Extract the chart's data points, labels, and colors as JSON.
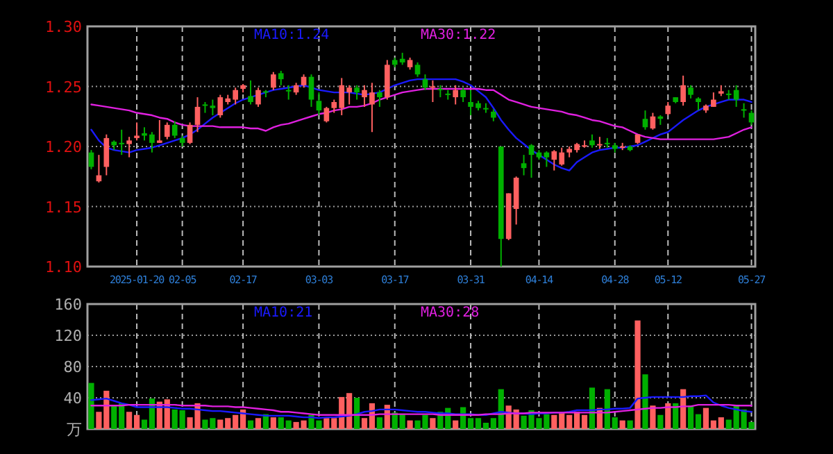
{
  "chart_data": [
    {
      "type": "candlestick",
      "grid": true,
      "legend": "top",
      "categories": [
        null,
        null,
        null,
        null,
        null,
        null,
        "2025-01-20",
        null,
        null,
        null,
        null,
        null,
        "02-05",
        null,
        null,
        null,
        null,
        null,
        null,
        null,
        "02-17",
        null,
        null,
        null,
        null,
        null,
        null,
        null,
        null,
        null,
        "03-03",
        null,
        null,
        null,
        null,
        null,
        null,
        null,
        null,
        null,
        "03-17",
        null,
        null,
        null,
        null,
        null,
        null,
        null,
        null,
        null,
        "03-31",
        null,
        null,
        null,
        null,
        null,
        null,
        null,
        null,
        "04-14",
        null,
        null,
        null,
        null,
        null,
        null,
        null,
        null,
        null,
        "04-28",
        null,
        null,
        null,
        null,
        null,
        null,
        "05-12",
        null,
        null,
        null,
        null,
        null,
        null,
        null,
        null,
        null,
        null,
        "05-27"
      ],
      "ohlc": [
        [
          1.195,
          1.197,
          1.181,
          1.183
        ],
        [
          1.171,
          1.193,
          1.17,
          1.176
        ],
        [
          1.183,
          1.21,
          1.176,
          1.207
        ],
        [
          1.204,
          1.205,
          1.197,
          1.201
        ],
        [
          1.203,
          1.214,
          1.193,
          1.202
        ],
        [
          1.202,
          1.208,
          1.191,
          1.205
        ],
        [
          1.207,
          1.22,
          1.205,
          1.209
        ],
        [
          1.211,
          1.216,
          1.205,
          1.209
        ],
        [
          1.21,
          1.212,
          1.195,
          1.203
        ],
        [
          1.203,
          1.222,
          1.203,
          1.205
        ],
        [
          1.208,
          1.22,
          1.206,
          1.218
        ],
        [
          1.218,
          1.221,
          1.207,
          1.209
        ],
        [
          1.207,
          1.209,
          1.2,
          1.203
        ],
        [
          1.203,
          1.22,
          1.202,
          1.218
        ],
        [
          1.218,
          1.241,
          1.212,
          1.233
        ],
        [
          1.235,
          1.237,
          1.228,
          1.234
        ],
        [
          1.234,
          1.239,
          1.226,
          1.232
        ],
        [
          1.226,
          1.243,
          1.224,
          1.241
        ],
        [
          1.237,
          1.243,
          1.235,
          1.24
        ],
        [
          1.239,
          1.249,
          1.235,
          1.247
        ],
        [
          1.248,
          1.252,
          1.245,
          1.251
        ],
        [
          1.242,
          1.255,
          1.235,
          1.237
        ],
        [
          1.235,
          1.249,
          1.233,
          1.247
        ],
        [
          1.246,
          1.247,
          1.241,
          1.245
        ],
        [
          1.249,
          1.262,
          1.247,
          1.26
        ],
        [
          1.261,
          1.263,
          1.251,
          1.256
        ],
        [
          1.247,
          1.251,
          1.239,
          1.246
        ],
        [
          1.245,
          1.253,
          1.243,
          1.251
        ],
        [
          1.251,
          1.26,
          1.249,
          1.258
        ],
        [
          1.258,
          1.26,
          1.233,
          1.239
        ],
        [
          1.238,
          1.245,
          1.226,
          1.23
        ],
        [
          1.221,
          1.233,
          1.22,
          1.232
        ],
        [
          1.232,
          1.239,
          1.228,
          1.237
        ],
        [
          1.232,
          1.257,
          1.226,
          1.251
        ],
        [
          1.245,
          1.251,
          1.235,
          1.249
        ],
        [
          1.249,
          1.251,
          1.239,
          1.245
        ],
        [
          1.241,
          1.251,
          1.233,
          1.247
        ],
        [
          1.235,
          1.253,
          1.212,
          1.245
        ],
        [
          1.245,
          1.247,
          1.233,
          1.241
        ],
        [
          1.241,
          1.272,
          1.239,
          1.268
        ],
        [
          1.272,
          1.274,
          1.266,
          1.268
        ],
        [
          1.273,
          1.278,
          1.268,
          1.27
        ],
        [
          1.266,
          1.274,
          1.264,
          1.272
        ],
        [
          1.268,
          1.27,
          1.258,
          1.26
        ],
        [
          1.256,
          1.26,
          1.247,
          1.249
        ],
        [
          1.249,
          1.255,
          1.237,
          1.25
        ],
        [
          1.248,
          1.251,
          1.241,
          1.247
        ],
        [
          1.244,
          1.247,
          1.239,
          1.243
        ],
        [
          1.241,
          1.251,
          1.235,
          1.247
        ],
        [
          1.247,
          1.249,
          1.237,
          1.241
        ],
        [
          1.237,
          1.247,
          1.226,
          1.233
        ],
        [
          1.236,
          1.238,
          1.23,
          1.232
        ],
        [
          1.232,
          1.236,
          1.228,
          1.231
        ],
        [
          1.229,
          1.231,
          1.221,
          1.224
        ],
        [
          1.2,
          1.2,
          1.1,
          1.123
        ],
        [
          1.123,
          1.161,
          1.122,
          1.161
        ],
        [
          1.148,
          1.175,
          1.135,
          1.174
        ],
        [
          1.186,
          1.193,
          1.176,
          1.182
        ],
        [
          1.201,
          1.202,
          1.174,
          1.193
        ],
        [
          1.195,
          1.197,
          1.189,
          1.191
        ],
        [
          1.195,
          1.196,
          1.183,
          1.191
        ],
        [
          1.189,
          1.197,
          1.18,
          1.196
        ],
        [
          1.185,
          1.199,
          1.184,
          1.195
        ],
        [
          1.195,
          1.2,
          1.191,
          1.198
        ],
        [
          1.197,
          1.203,
          1.195,
          1.202
        ],
        [
          1.2,
          1.205,
          1.199,
          1.201
        ],
        [
          1.205,
          1.21,
          1.199,
          1.201
        ],
        [
          1.201,
          1.208,
          1.198,
          1.202
        ],
        [
          1.203,
          1.207,
          1.199,
          1.202
        ],
        [
          1.201,
          1.203,
          1.195,
          1.198
        ],
        [
          1.199,
          1.203,
          1.197,
          1.2
        ],
        [
          1.2,
          1.201,
          1.196,
          1.197
        ],
        [
          1.203,
          1.21,
          1.202,
          1.21
        ],
        [
          1.223,
          1.23,
          1.214,
          1.216
        ],
        [
          1.215,
          1.228,
          1.214,
          1.225
        ],
        [
          1.225,
          1.226,
          1.218,
          1.223
        ],
        [
          1.227,
          1.237,
          1.226,
          1.234
        ],
        [
          1.241,
          1.241,
          1.236,
          1.237
        ],
        [
          1.237,
          1.259,
          1.234,
          1.251
        ],
        [
          1.249,
          1.251,
          1.24,
          1.243
        ],
        [
          1.24,
          1.241,
          1.23,
          1.237
        ],
        [
          1.23,
          1.235,
          1.228,
          1.234
        ],
        [
          1.233,
          1.245,
          1.233,
          1.239
        ],
        [
          1.244,
          1.251,
          1.242,
          1.246
        ],
        [
          1.244,
          1.247,
          1.239,
          1.243
        ],
        [
          1.247,
          1.251,
          1.233,
          1.239
        ],
        [
          1.231,
          1.236,
          1.224,
          1.23
        ],
        [
          1.228,
          1.23,
          1.218,
          1.22
        ]
      ],
      "colors": [
        "#00b000",
        "#ff6060",
        "#ff6060",
        "#00b000",
        "#00b000",
        "#ff6060",
        "#ff6060",
        "#00b000",
        "#00b000",
        "#ff6060",
        "#ff6060",
        "#00b000",
        "#00b000",
        "#ff6060",
        "#ff6060",
        "#00b000",
        "#00b000",
        "#ff6060",
        "#ff6060",
        "#ff6060",
        "#ff6060",
        "#00b000",
        "#ff6060",
        "#00b000",
        "#ff6060",
        "#00b000",
        "#00b000",
        "#ff6060",
        "#ff6060",
        "#00b000",
        "#00b000",
        "#ff6060",
        "#ff6060",
        "#ff6060",
        "#ff6060",
        "#00b000",
        "#ff6060",
        "#ff6060",
        "#00b000",
        "#ff6060",
        "#00b000",
        "#00b000",
        "#ff6060",
        "#00b000",
        "#00b000",
        "#ff6060",
        "#00b000",
        "#00b000",
        "#ff6060",
        "#00b000",
        "#00b000",
        "#00b000",
        "#00b000",
        "#00b000",
        "#00b000",
        "#ff6060",
        "#ff6060",
        "#00b000",
        "#00b000",
        "#00b000",
        "#00b000",
        "#ff6060",
        "#ff6060",
        "#ff6060",
        "#ff6060",
        "#ff6060",
        "#00b000",
        "#ff6060",
        "#00b000",
        "#00b000",
        "#ff6060",
        "#00b000",
        "#ff6060",
        "#00b000",
        "#ff6060",
        "#00b000",
        "#ff6060",
        "#00b000",
        "#ff6060",
        "#00b000",
        "#00b000",
        "#ff6060",
        "#ff6060",
        "#ff6060",
        "#00b000",
        "#00b000",
        "#00b000",
        "#00b000"
      ],
      "series": [
        {
          "type": "line",
          "name": "MA10:1.24",
          "color": "#1a1aff",
          "values": [
            1.214,
            1.205,
            1.199,
            1.197,
            1.196,
            1.195,
            1.197,
            1.198,
            1.199,
            1.201,
            1.203,
            1.205,
            1.207,
            1.21,
            1.214,
            1.219,
            1.224,
            1.228,
            1.232,
            1.236,
            1.239,
            1.241,
            1.243,
            1.245,
            1.247,
            1.248,
            1.249,
            1.25,
            1.251,
            1.249,
            1.247,
            1.246,
            1.245,
            1.245,
            1.245,
            1.244,
            1.243,
            1.244,
            1.245,
            1.248,
            1.251,
            1.253,
            1.255,
            1.256,
            1.256,
            1.256,
            1.256,
            1.256,
            1.256,
            1.254,
            1.251,
            1.246,
            1.241,
            1.232,
            1.222,
            1.214,
            1.207,
            1.202,
            1.197,
            1.193,
            1.189,
            1.185,
            1.182,
            1.18,
            1.187,
            1.191,
            1.195,
            1.197,
            1.198,
            1.199,
            1.199,
            1.2,
            1.201,
            1.204,
            1.207,
            1.21,
            1.212,
            1.217,
            1.222,
            1.226,
            1.23,
            1.233,
            1.235,
            1.237,
            1.239,
            1.239,
            1.239,
            1.237
          ]
        },
        {
          "type": "line",
          "name": "MA30:1.22",
          "color": "#e020e0",
          "values": [
            1.235,
            1.234,
            1.233,
            1.232,
            1.231,
            1.23,
            1.228,
            1.227,
            1.226,
            1.224,
            1.223,
            1.22,
            1.218,
            1.217,
            1.217,
            1.217,
            1.217,
            1.216,
            1.216,
            1.216,
            1.216,
            1.215,
            1.215,
            1.213,
            1.216,
            1.218,
            1.219,
            1.221,
            1.223,
            1.225,
            1.227,
            1.228,
            1.23,
            1.231,
            1.233,
            1.233,
            1.234,
            1.236,
            1.239,
            1.241,
            1.243,
            1.245,
            1.246,
            1.247,
            1.248,
            1.248,
            1.248,
            1.248,
            1.248,
            1.248,
            1.248,
            1.248,
            1.247,
            1.247,
            1.243,
            1.239,
            1.237,
            1.235,
            1.233,
            1.232,
            1.231,
            1.23,
            1.229,
            1.227,
            1.226,
            1.224,
            1.222,
            1.221,
            1.219,
            1.217,
            1.216,
            1.213,
            1.21,
            1.208,
            1.207,
            1.206,
            1.206,
            1.206,
            1.206,
            1.206,
            1.206,
            1.206,
            1.206,
            1.207,
            1.208,
            1.211,
            1.214,
            1.216
          ]
        }
      ],
      "ylim": [
        1.1,
        1.3
      ],
      "yticks": [
        {
          "value": 1.1,
          "label": "1.10"
        },
        {
          "value": 1.15,
          "label": "1.15"
        },
        {
          "value": 1.2,
          "label": "1.20"
        },
        {
          "value": 1.25,
          "label": "1.25"
        },
        {
          "value": 1.3,
          "label": "1.30"
        }
      ]
    },
    {
      "type": "bar",
      "grid": true,
      "legend": "top",
      "tick_labels": "y",
      "categories": [
        null,
        null,
        null,
        null,
        null,
        null,
        null,
        null,
        null,
        null,
        null,
        null,
        null,
        null,
        null,
        null,
        null,
        null,
        null,
        null,
        null,
        null,
        null,
        null,
        null,
        null,
        null,
        null,
        null,
        null,
        null,
        null,
        null,
        null,
        null,
        null,
        null,
        null,
        null,
        null,
        null,
        null,
        null,
        null,
        null,
        null,
        null,
        null,
        null,
        null,
        null,
        null,
        null,
        null,
        null,
        null,
        null,
        null,
        null,
        null,
        null,
        null,
        null,
        null,
        null,
        null,
        null,
        null,
        null,
        null,
        null,
        null,
        null,
        null,
        null,
        null,
        null,
        null,
        null,
        null,
        null,
        null,
        null,
        null,
        null,
        null,
        null,
        null
      ],
      "values": [
        59,
        22,
        49,
        30,
        33,
        22,
        18,
        12,
        39,
        35,
        38,
        25,
        24,
        15,
        33,
        12,
        14,
        12,
        14,
        18,
        25,
        11,
        14,
        19,
        15,
        15,
        11,
        9,
        11,
        18,
        11,
        14,
        14,
        41,
        46,
        40,
        14,
        33,
        15,
        31,
        21,
        19,
        11,
        11,
        18,
        14,
        22,
        27,
        11,
        28,
        14,
        14,
        8,
        14,
        51,
        30,
        25,
        17,
        24,
        14,
        19,
        18,
        22,
        18,
        22,
        18,
        53,
        27,
        51,
        15,
        11,
        11,
        139,
        70,
        30,
        18,
        33,
        33,
        51,
        30,
        19,
        27,
        11,
        15,
        12,
        31,
        25,
        9
      ],
      "colors": [
        "#00b000",
        "#ff6060",
        "#ff6060",
        "#00b000",
        "#00b000",
        "#ff6060",
        "#ff6060",
        "#00b000",
        "#00b000",
        "#ff6060",
        "#ff6060",
        "#00b000",
        "#00b000",
        "#ff6060",
        "#ff6060",
        "#00b000",
        "#00b000",
        "#ff6060",
        "#ff6060",
        "#ff6060",
        "#ff6060",
        "#00b000",
        "#ff6060",
        "#00b000",
        "#ff6060",
        "#00b000",
        "#00b000",
        "#ff6060",
        "#ff6060",
        "#00b000",
        "#00b000",
        "#ff6060",
        "#ff6060",
        "#ff6060",
        "#ff6060",
        "#00b000",
        "#ff6060",
        "#ff6060",
        "#00b000",
        "#ff6060",
        "#00b000",
        "#00b000",
        "#ff6060",
        "#00b000",
        "#00b000",
        "#ff6060",
        "#00b000",
        "#00b000",
        "#ff6060",
        "#00b000",
        "#00b000",
        "#00b000",
        "#00b000",
        "#00b000",
        "#00b000",
        "#ff6060",
        "#ff6060",
        "#00b000",
        "#00b000",
        "#00b000",
        "#00b000",
        "#ff6060",
        "#ff6060",
        "#ff6060",
        "#ff6060",
        "#ff6060",
        "#00b000",
        "#ff6060",
        "#00b000",
        "#00b000",
        "#ff6060",
        "#00b000",
        "#ff6060",
        "#00b000",
        "#ff6060",
        "#00b000",
        "#ff6060",
        "#00b000",
        "#ff6060",
        "#00b000",
        "#00b000",
        "#ff6060",
        "#ff6060",
        "#ff6060",
        "#00b000",
        "#00b000",
        "#00b000",
        "#00b000"
      ],
      "series": [
        {
          "type": "line",
          "name": "MA10:21",
          "color": "#1a1aff",
          "values": [
            37,
            38,
            39,
            36,
            33,
            31,
            28,
            28,
            28,
            28,
            28,
            27,
            26,
            26,
            25,
            24,
            23,
            23,
            22,
            21,
            20,
            19,
            18,
            17,
            17,
            17,
            17,
            16,
            15,
            15,
            14,
            15,
            15,
            16,
            17,
            19,
            22,
            23,
            25,
            25,
            25,
            24,
            23,
            22,
            22,
            21,
            20,
            20,
            19,
            19,
            19,
            18,
            18,
            20,
            22,
            21,
            20,
            20,
            19,
            20,
            20,
            21,
            21,
            22,
            24,
            24,
            24,
            25,
            25,
            26,
            26,
            27,
            39,
            40,
            41,
            41,
            41,
            41,
            41,
            42,
            42,
            43,
            34,
            30,
            27,
            25,
            23,
            22
          ]
        },
        {
          "type": "line",
          "name": "MA30:28",
          "color": "#e020e0",
          "values": [
            30,
            30,
            30,
            30,
            30,
            31,
            31,
            31,
            31,
            31,
            31,
            31,
            30,
            30,
            30,
            30,
            29,
            29,
            29,
            28,
            28,
            27,
            26,
            25,
            24,
            22,
            22,
            21,
            20,
            19,
            18,
            18,
            18,
            18,
            18,
            18,
            18,
            18,
            19,
            19,
            19,
            19,
            19,
            19,
            19,
            19,
            18,
            18,
            18,
            18,
            18,
            18,
            19,
            19,
            19,
            20,
            20,
            20,
            21,
            21,
            21,
            21,
            21,
            21,
            21,
            21,
            21,
            21,
            21,
            22,
            23,
            24,
            25,
            26,
            27,
            27,
            28,
            28,
            29,
            29,
            31,
            31,
            31,
            31,
            31,
            30,
            30,
            30
          ]
        }
      ],
      "ylim": [
        0,
        160
      ],
      "yticks": [
        {
          "value": 0,
          "label": "万"
        },
        40,
        80,
        120,
        160
      ]
    }
  ]
}
